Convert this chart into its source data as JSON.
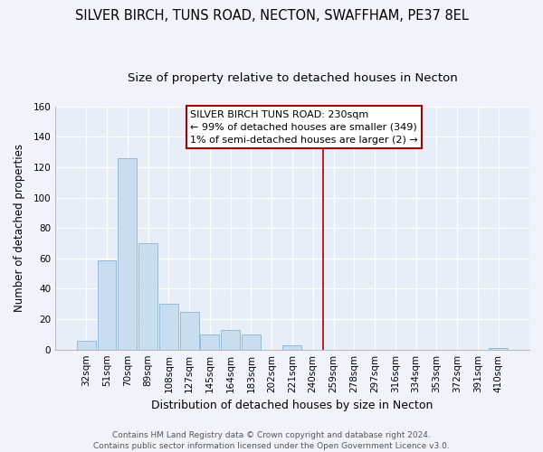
{
  "title": "SILVER BIRCH, TUNS ROAD, NECTON, SWAFFHAM, PE37 8EL",
  "subtitle": "Size of property relative to detached houses in Necton",
  "xlabel": "Distribution of detached houses by size in Necton",
  "ylabel": "Number of detached properties",
  "bar_labels": [
    "32sqm",
    "51sqm",
    "70sqm",
    "89sqm",
    "108sqm",
    "127sqm",
    "145sqm",
    "164sqm",
    "183sqm",
    "202sqm",
    "221sqm",
    "240sqm",
    "259sqm",
    "278sqm",
    "297sqm",
    "316sqm",
    "334sqm",
    "353sqm",
    "372sqm",
    "391sqm",
    "410sqm"
  ],
  "bar_values": [
    6,
    59,
    126,
    70,
    30,
    25,
    10,
    13,
    10,
    0,
    3,
    0,
    0,
    0,
    0,
    0,
    0,
    0,
    0,
    0,
    1
  ],
  "bar_color": "#c8ddf0",
  "bar_edge_color": "#8ab4d4",
  "vline_x": 11.5,
  "vline_color": "#aa0000",
  "annotation_line1": "SILVER BIRCH TUNS ROAD: 230sqm",
  "annotation_line2": "← 99% of detached houses are smaller (349)",
  "annotation_line3": "1% of semi-detached houses are larger (2) →",
  "ylim": [
    0,
    160
  ],
  "yticks": [
    0,
    20,
    40,
    60,
    80,
    100,
    120,
    140,
    160
  ],
  "footer_text": "Contains HM Land Registry data © Crown copyright and database right 2024.\nContains public sector information licensed under the Open Government Licence v3.0.",
  "plot_bg_color": "#e8eef8",
  "fig_bg_color": "#f0f4fa",
  "grid_color": "#ffffff",
  "title_fontsize": 10.5,
  "subtitle_fontsize": 9.5,
  "xlabel_fontsize": 9,
  "ylabel_fontsize": 8.5,
  "tick_fontsize": 7.5,
  "annotation_fontsize": 8,
  "footer_fontsize": 6.5
}
